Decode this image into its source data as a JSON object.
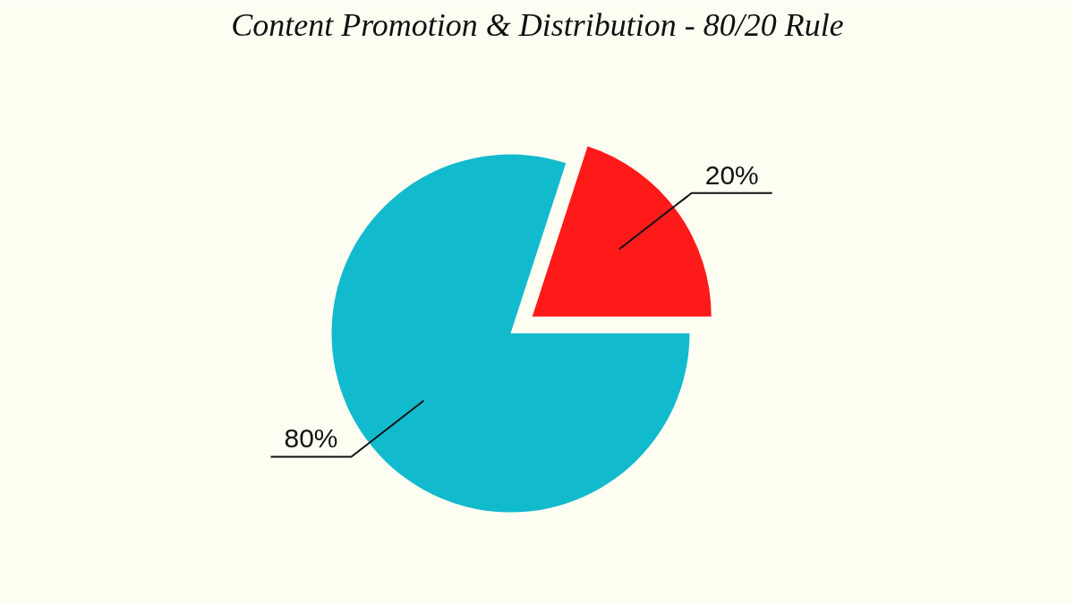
{
  "chart_data": {
    "type": "pie",
    "title": "Content Promotion & Distribution - 80/20 Rule",
    "categories": [
      null,
      null
    ],
    "values": [
      20,
      80
    ],
    "colors": [
      "#ff1a1a",
      "#12bacd"
    ],
    "value_labels": [
      "20%",
      "80%"
    ]
  }
}
